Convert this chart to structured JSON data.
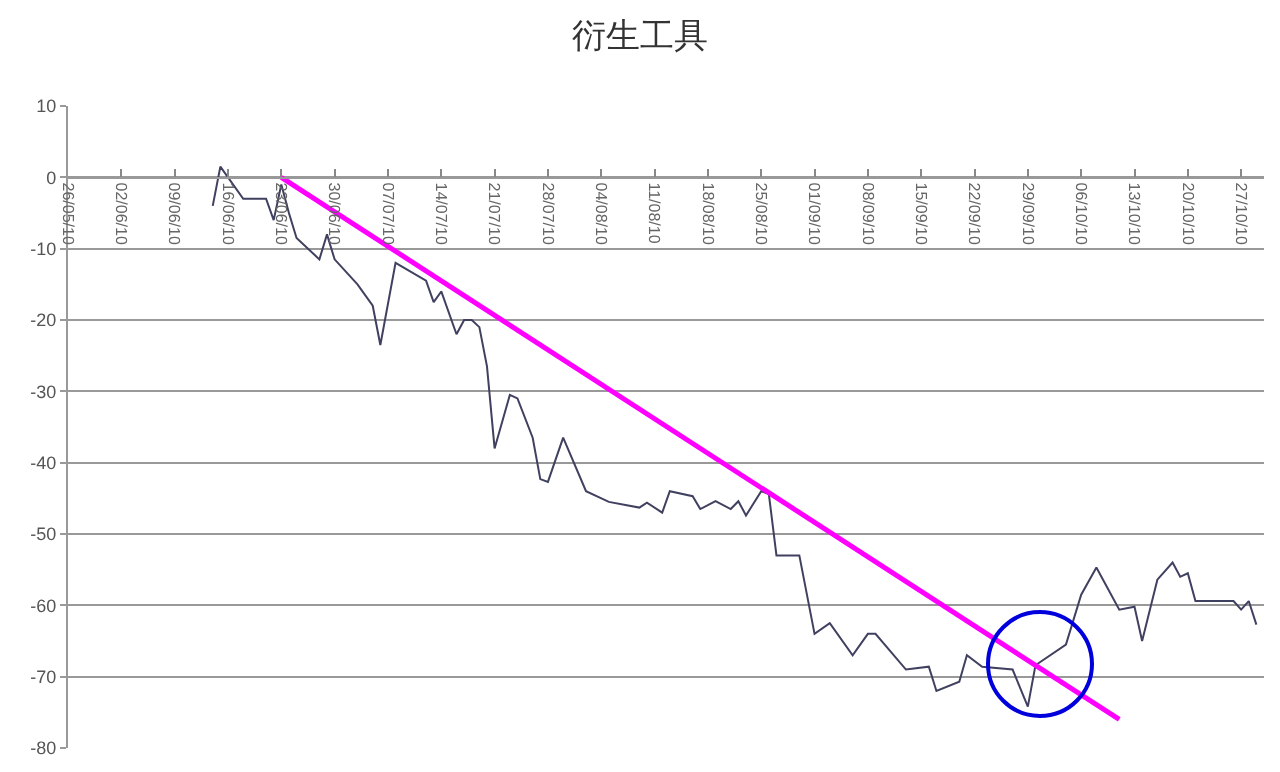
{
  "chart_data": {
    "type": "line",
    "title": "衍生工具",
    "x": [
      "--06-14",
      "--06-15",
      "--06-18",
      "--06-21",
      "--06-22",
      "--06-23",
      "--06-24",
      "--06-25",
      "--06-28",
      "--06-29",
      "--06-30",
      "--07-03",
      "--07-05",
      "--07-06",
      "--07-08",
      "--07-12",
      "--07-13",
      "--07-14",
      "--07-16",
      "--07-17",
      "--07-18",
      "--07-19",
      "--07-20",
      "--07-21",
      "--07-23",
      "--07-24",
      "--07-26",
      "--07-27",
      "--07-28",
      "--07-30",
      "--08-02",
      "--08-05",
      "--08-09",
      "--08-10",
      "--08-12",
      "--08-13",
      "--08-16",
      "--08-17",
      "--08-19",
      "--08-21",
      "--08-22",
      "--08-23",
      "--08-25",
      "--08-26",
      "--08-27",
      "--08-30",
      "--09-01",
      "--09-03",
      "--09-06",
      "--09-08",
      "--09-09",
      "--09-13",
      "--09-16",
      "--09-17",
      "--09-20",
      "--09-21",
      "--09-23",
      "--09-27",
      "--09-29",
      "--09-30",
      "--10-04",
      "--10-06",
      "--10-08",
      "--10-11",
      "--10-13",
      "--10-14",
      "--10-16",
      "--10-18",
      "--10-19",
      "--10-20",
      "--10-21",
      "--10-26",
      "--10-27",
      "--10-28",
      "--10-29"
    ],
    "series": [
      {
        "color": "#404060",
        "values": [
          -4,
          1.5,
          -3,
          -3,
          -6,
          -1,
          -5,
          -8.5,
          -11.5,
          -8,
          -11.5,
          -15,
          -18,
          -23.5,
          -12,
          -14.5,
          -17.5,
          -16,
          -22,
          -20,
          -20,
          -21,
          -26.5,
          -38,
          -30.5,
          -31,
          -36.5,
          -42.3,
          -42.7,
          -36.5,
          -44,
          -45.5,
          -46.3,
          -45.6,
          -47,
          -44,
          -44.7,
          -46.5,
          -45.4,
          -46.5,
          -45.4,
          -47.4,
          -44,
          -44.4,
          -53,
          -53,
          -64,
          -62.5,
          -67,
          -64,
          -64,
          -69,
          -68.6,
          -72,
          -70.7,
          -67,
          -68.6,
          -69,
          -74.2,
          -68.4,
          -65.5,
          -58.5,
          -54.7,
          -60.6,
          -60.2,
          -65,
          -56.4,
          -54,
          -56,
          -55.5,
          -59.4,
          -59.4,
          -60.6,
          -59.4,
          -62.7
        ]
      },
      {
        "type": "line",
        "color": "#ff00ff",
        "x": [
          "--06-23",
          "--10-11"
        ],
        "values": [
          0,
          -76
        ]
      }
    ],
    "marker": "none",
    "xlim": [
      "--05-26",
      "--10-30"
    ],
    "xticks": [
      {
        "value": "--05-26",
        "label": "26/05/10"
      },
      {
        "value": "--06-02",
        "label": "02/06/10"
      },
      {
        "value": "--06-09",
        "label": "09/06/10"
      },
      {
        "value": "--06-16",
        "label": "16/06/10"
      },
      {
        "value": "--06-23",
        "label": "23/06/10"
      },
      {
        "value": "--06-30",
        "label": "30/06/10"
      },
      {
        "value": "--07-07",
        "label": "07/07/10"
      },
      {
        "value": "--07-14",
        "label": "14/07/10"
      },
      {
        "value": "--07-21",
        "label": "21/07/10"
      },
      {
        "value": "--07-28",
        "label": "28/07/10"
      },
      {
        "value": "--08-04",
        "label": "04/08/10"
      },
      {
        "value": "--08-11",
        "label": "11/08/10"
      },
      {
        "value": "--08-18",
        "label": "18/08/10"
      },
      {
        "value": "--08-25",
        "label": "25/08/10"
      },
      {
        "value": "--09-01",
        "label": "01/09/10"
      },
      {
        "value": "--09-08",
        "label": "08/09/10"
      },
      {
        "value": "--09-15",
        "label": "15/09/10"
      },
      {
        "value": "--09-22",
        "label": "22/09/10"
      },
      {
        "value": "--09-29",
        "label": "29/09/10"
      },
      {
        "value": "--10-06",
        "label": "06/10/10"
      },
      {
        "value": "--10-13",
        "label": "13/10/10"
      },
      {
        "value": "--10-20",
        "label": "20/10/10"
      },
      {
        "value": "--10-27",
        "label": "27/10/10"
      }
    ],
    "ylim": [
      -80,
      10
    ],
    "yticks": [
      -80,
      -70,
      -60,
      -50,
      -40,
      -30,
      -20,
      -10,
      0,
      10
    ],
    "grid": "y"
  }
}
